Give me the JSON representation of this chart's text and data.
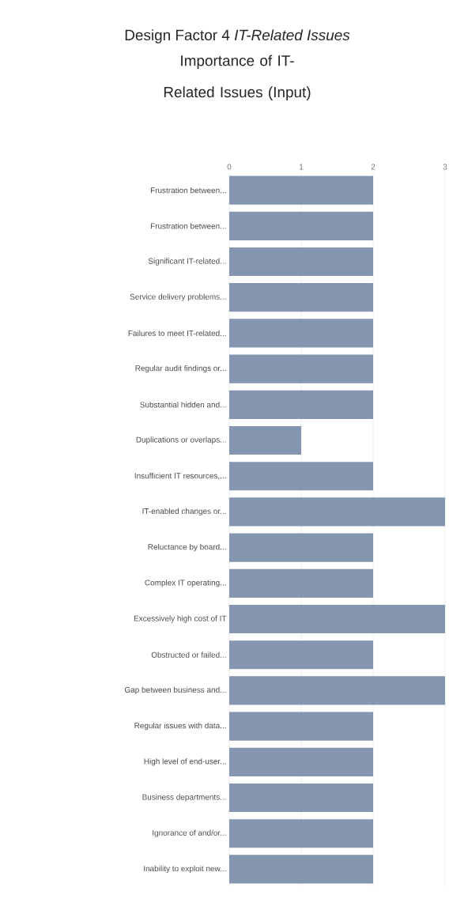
{
  "chart_data": {
    "type": "bar",
    "orientation": "horizontal",
    "title": "Design Factor 4 *IT-Related Issues*",
    "subtitle": "Importance of IT-Related Issues (Input)",
    "categories": [
      "Frustration between...",
      "Frustration between...",
      "Significant IT-related...",
      "Service delivery problems...",
      "Failures to meet IT-related...",
      "Regular audit findings or...",
      "Substantial hidden and...",
      "Duplications or overlaps...",
      "Insufficient IT resources,...",
      "IT-enabled changes or...",
      "Reluctance by board...",
      "Complex IT operating...",
      "Excessively high cost of IT",
      "Obstructed or failed...",
      "Gap between business and...",
      "Regular issues with data...",
      "High level of end-user...",
      "Business departments...",
      "Ignorance of and/or...",
      "Inability to exploit new..."
    ],
    "values": [
      2,
      2,
      2,
      2,
      2,
      2,
      2,
      1,
      2,
      3,
      2,
      2,
      3,
      2,
      3,
      2,
      2,
      2,
      2,
      2
    ],
    "color": "#8496b0",
    "xlim": [
      0,
      3
    ],
    "xticks": [
      0,
      1,
      2,
      3
    ],
    "grid": "x"
  }
}
